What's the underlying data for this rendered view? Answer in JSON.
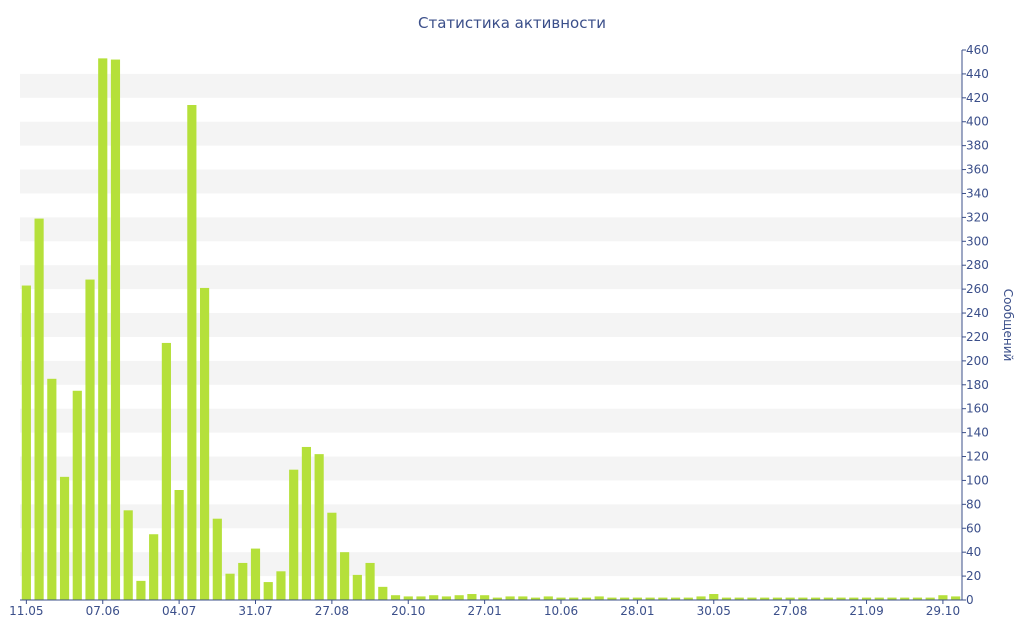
{
  "chart_data": {
    "type": "bar",
    "title": "Статистика активности",
    "xlabel": "",
    "ylabel": "Сообщений",
    "ylim": [
      0,
      460
    ],
    "y_ticks": [
      0,
      20,
      40,
      60,
      80,
      100,
      120,
      140,
      160,
      180,
      200,
      220,
      240,
      260,
      280,
      300,
      320,
      340,
      360,
      380,
      400,
      420,
      440,
      460
    ],
    "x_tick_labels": [
      {
        "index": 0,
        "label": "11.05"
      },
      {
        "index": 6,
        "label": "07.06"
      },
      {
        "index": 12,
        "label": "04.07"
      },
      {
        "index": 18,
        "label": "31.07"
      },
      {
        "index": 24,
        "label": "27.08"
      },
      {
        "index": 30,
        "label": "20.10"
      },
      {
        "index": 36,
        "label": "27.01"
      },
      {
        "index": 42,
        "label": "10.06"
      },
      {
        "index": 48,
        "label": "28.01"
      },
      {
        "index": 54,
        "label": "30.05"
      },
      {
        "index": 60,
        "label": "27.08"
      },
      {
        "index": 66,
        "label": "21.09"
      },
      {
        "index": 72,
        "label": "29.10"
      }
    ],
    "values": [
      263,
      319,
      185,
      103,
      175,
      268,
      453,
      452,
      75,
      16,
      55,
      215,
      92,
      414,
      261,
      68,
      22,
      31,
      43,
      15,
      24,
      109,
      128,
      122,
      73,
      40,
      21,
      31,
      11,
      4,
      3,
      3,
      4,
      3,
      4,
      5,
      4,
      2,
      3,
      3,
      2,
      3,
      2,
      2,
      2,
      3,
      2,
      2,
      2,
      2,
      2,
      2,
      2,
      3,
      5,
      2,
      2,
      2,
      2,
      2,
      2,
      2,
      2,
      2,
      2,
      2,
      2,
      2,
      2,
      2,
      2,
      2,
      4,
      3
    ],
    "grid": true,
    "y_axis_position": "right",
    "bar_color": "#b5e03a",
    "band_color": "#f4f4f4",
    "text_color": "#3b4f8a"
  }
}
